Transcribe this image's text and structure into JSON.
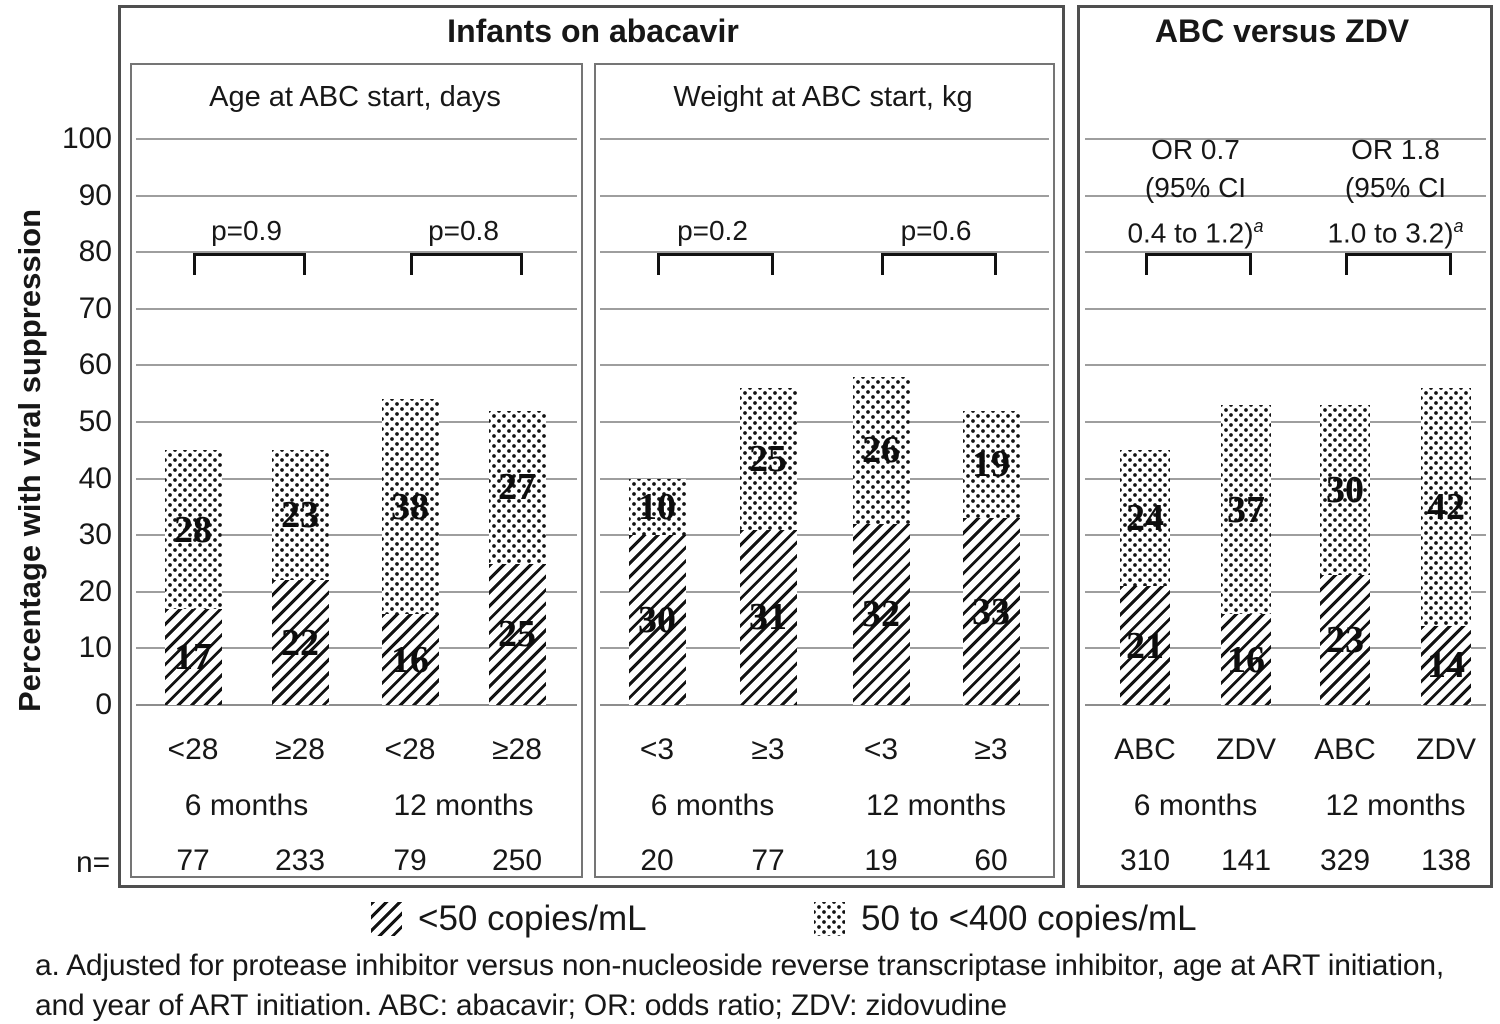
{
  "chart_data": {
    "type": "bar",
    "stacked": true,
    "left_title": "Infants on abacavir",
    "right_title": "ABC versus ZDV",
    "y_axis": {
      "label": "Percentage with viral suppression",
      "ticks": [
        100,
        90,
        80,
        70,
        60,
        50,
        40,
        30,
        20,
        10,
        0
      ],
      "min": 0,
      "max": 100,
      "grid": true
    },
    "series_meta": [
      {
        "name": "<50 copies/mL",
        "pattern": "hatch",
        "position": "bottom"
      },
      {
        "name": "50 to <400 copies/mL",
        "pattern": "dots",
        "position": "top"
      }
    ],
    "n_label": "n=",
    "panels": [
      {
        "header": "Age at ABC start, days",
        "groups": [
          {
            "label": "6 months",
            "annotation": {
              "lines": [
                "p=0.9"
              ],
              "sup": ""
            },
            "bars": [
              {
                "category": "<28",
                "n": "77",
                "lt50": 17,
                "b50to400": 28
              },
              {
                "category": "≥28",
                "n": "233",
                "lt50": 22,
                "b50to400": 23
              }
            ]
          },
          {
            "label": "12 months",
            "annotation": {
              "lines": [
                "p=0.8"
              ],
              "sup": ""
            },
            "bars": [
              {
                "category": "<28",
                "n": "79",
                "lt50": 16,
                "b50to400": 38
              },
              {
                "category": "≥28",
                "n": "250",
                "lt50": 25,
                "b50to400": 27
              }
            ]
          }
        ]
      },
      {
        "header": "Weight at ABC start, kg",
        "groups": [
          {
            "label": "6 months",
            "annotation": {
              "lines": [
                "p=0.2"
              ],
              "sup": ""
            },
            "bars": [
              {
                "category": "<3",
                "n": "20",
                "lt50": 30,
                "b50to400": 10
              },
              {
                "category": "≥3",
                "n": "77",
                "lt50": 31,
                "b50to400": 25
              }
            ]
          },
          {
            "label": "12 months",
            "annotation": {
              "lines": [
                "p=0.6"
              ],
              "sup": ""
            },
            "bars": [
              {
                "category": "<3",
                "n": "19",
                "lt50": 32,
                "b50to400": 26
              },
              {
                "category": "≥3",
                "n": "60",
                "lt50": 33,
                "b50to400": 19
              }
            ]
          }
        ]
      },
      {
        "header": "",
        "groups": [
          {
            "label": "6 months",
            "annotation": {
              "lines": [
                "OR 0.7",
                "(95% CI",
                "0.4 to 1.2)"
              ],
              "sup": "a"
            },
            "bars": [
              {
                "category": "ABC",
                "n": "310",
                "lt50": 21,
                "b50to400": 24
              },
              {
                "category": "ZDV",
                "n": "141",
                "lt50": 16,
                "b50to400": 37
              }
            ]
          },
          {
            "label": "12 months",
            "annotation": {
              "lines": [
                "OR 1.8",
                "(95% CI",
                "1.0 to 3.2)"
              ],
              "sup": "a"
            },
            "bars": [
              {
                "category": "ABC",
                "n": "329",
                "lt50": 23,
                "b50to400": 30
              },
              {
                "category": "ZDV",
                "n": "138",
                "lt50": 14,
                "b50to400": 42
              }
            ]
          }
        ]
      }
    ],
    "legend": [
      {
        "pattern": "hatch",
        "label": "<50 copies/mL"
      },
      {
        "pattern": "dots",
        "label": "50 to <400 copies/mL"
      }
    ],
    "footnote_lines": [
      "a. Adjusted for protease inhibitor versus non-nucleoside reverse transcriptase inhibitor, age at ART initiation,",
      "and year of ART initiation.  ABC: abacavir; OR: odds ratio; ZDV: zidovudine"
    ],
    "colors": {
      "ink": "#171717",
      "outer_border": "#4f4f4f",
      "inner_border": "#757575",
      "gridline": "#9e9e9e"
    }
  }
}
